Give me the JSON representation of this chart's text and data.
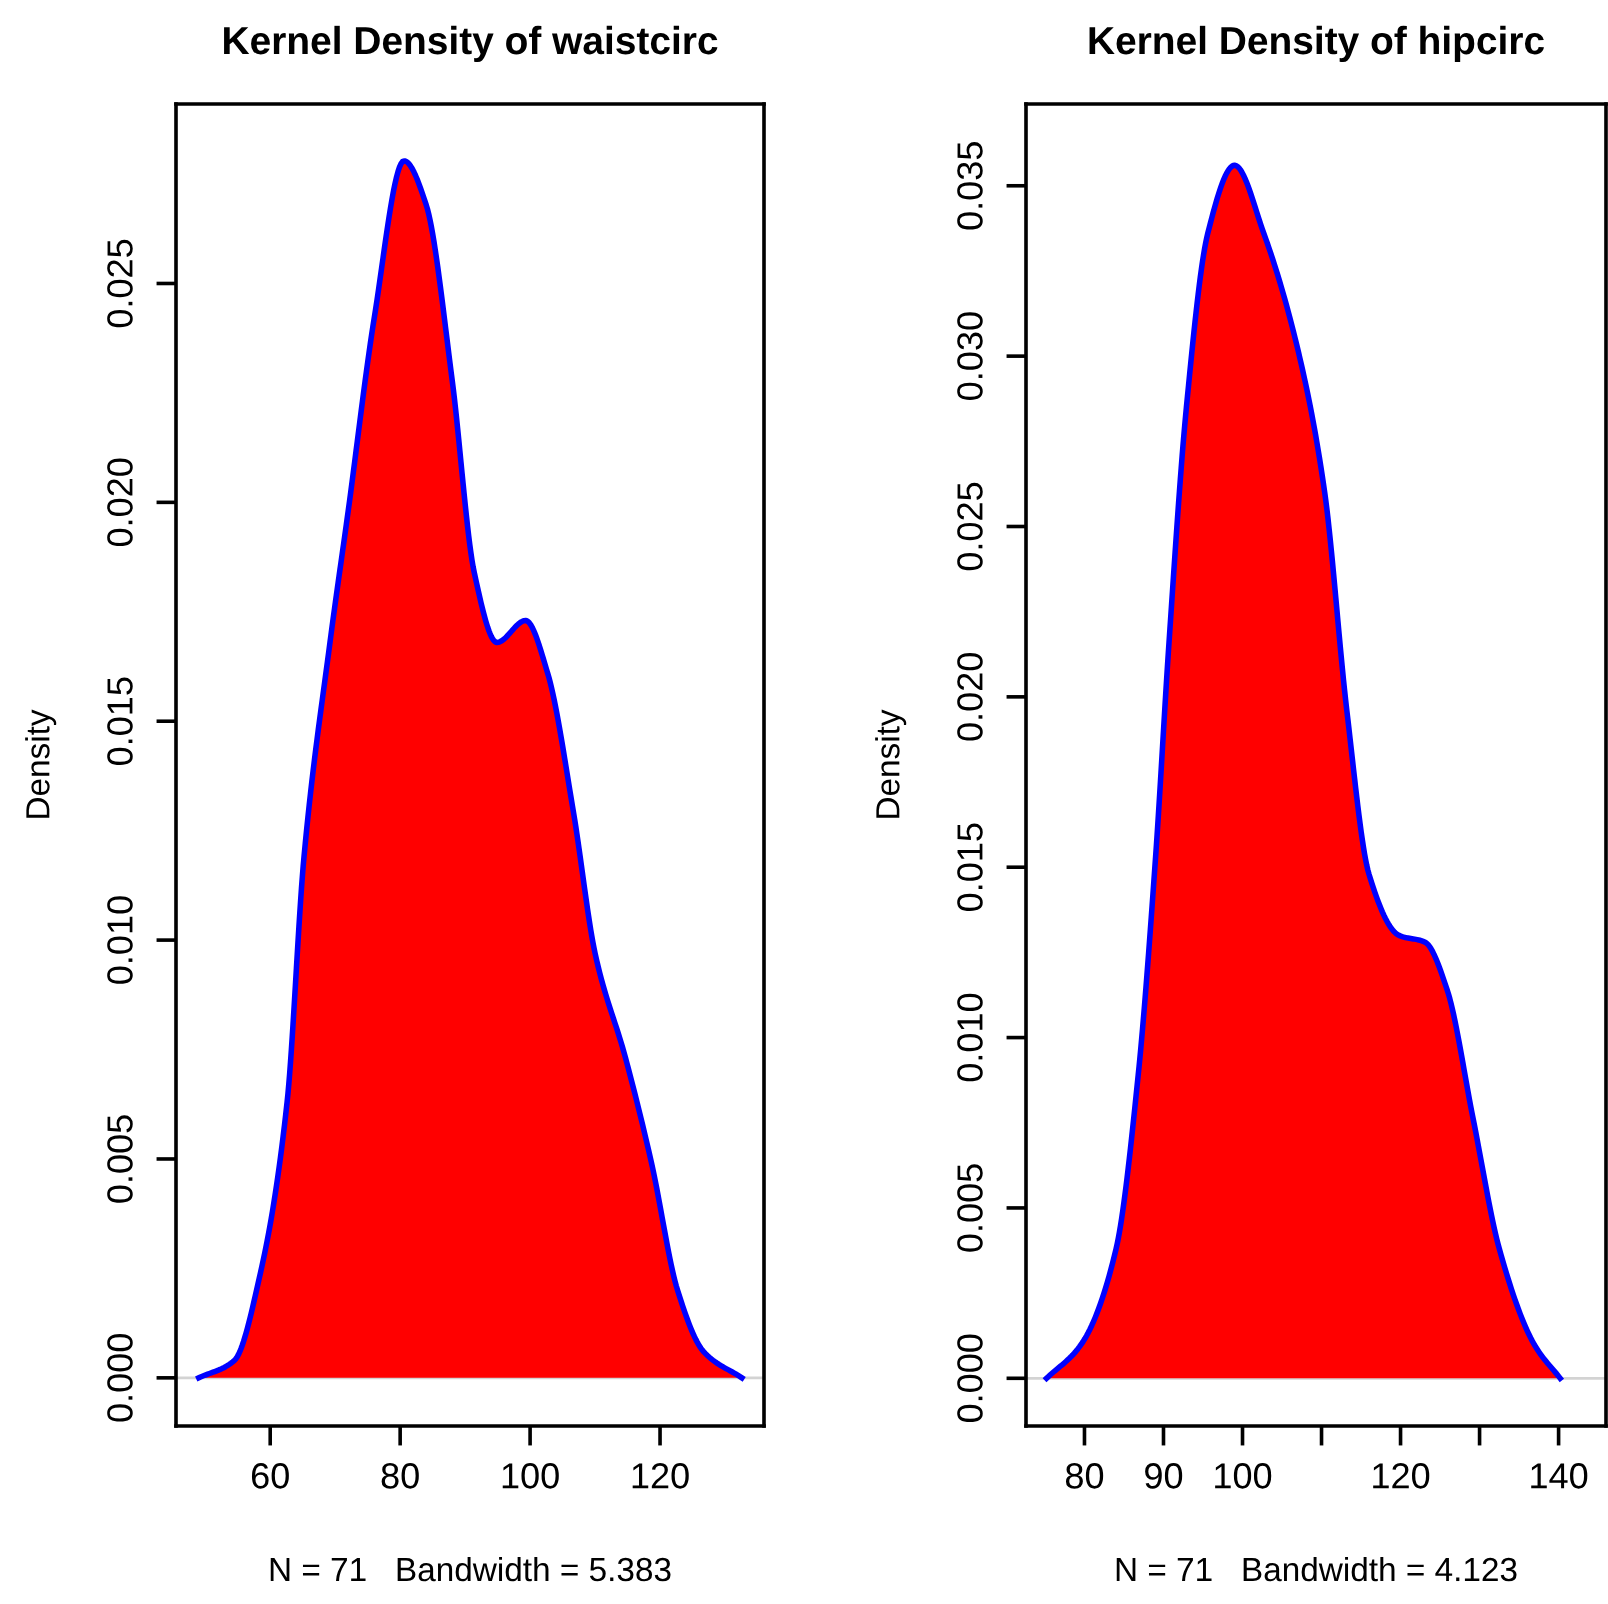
{
  "chart_data": [
    {
      "type": "area",
      "title": "Kernel Density of waistcirc",
      "xlabel": "N = 71   Bandwidth = 5.383",
      "ylabel": "Density",
      "xlim": [
        45.5,
        136
      ],
      "xticks": [
        60,
        80,
        100,
        120
      ],
      "ylim": [
        -0.0011,
        0.0291
      ],
      "yticks": [
        {
          "value": 0,
          "label": "0.000"
        },
        0.005,
        {
          "value": 0.01,
          "label": "0.010"
        },
        0.015,
        {
          "value": 0.02,
          "label": "0.020"
        },
        0.025
      ],
      "ref_lines": [
        {
          "axis": "y",
          "value": 0,
          "color": "#d3d3d3"
        }
      ],
      "grid": false,
      "legend": false,
      "series": [
        {
          "color": "#ff0000",
          "x": [
            49,
            54.5,
            58.5,
            62.6,
            65.2,
            69.2,
            72,
            76,
            80.6,
            84,
            88,
            91.4,
            94.9,
            99.3,
            102.7,
            106.7,
            110,
            114.7,
            118.7,
            122.7,
            126.7,
            132.6
          ],
          "values": [
            0,
            0.0004,
            0.0024,
            0.0063,
            0.0119,
            0.0168,
            0.0198,
            0.0242,
            0.0278,
            0.0268,
            0.0228,
            0.0184,
            0.0168,
            0.0173,
            0.0161,
            0.0129,
            0.0097,
            0.0073,
            0.0049,
            0.002,
            0.0006,
            0
          ]
        }
      ]
    },
    {
      "type": "area",
      "title": "Kernel Density of hipcirc",
      "xlabel": "N = 71   Bandwidth = 4.123",
      "ylabel": "Density",
      "xlim": [
        72.6,
        146
      ],
      "xticks": [
        80,
        90,
        100,
        {
          "value": 110,
          "label": null
        },
        120,
        {
          "value": 130,
          "label": null
        },
        140
      ],
      "ylim": [
        -0.0014,
        0.0374
      ],
      "yticks": [
        {
          "value": 0,
          "label": "0.000"
        },
        0.005,
        {
          "value": 0.01,
          "label": "0.010"
        },
        0.015,
        {
          "value": 0.02,
          "label": "0.020"
        },
        0.025,
        {
          "value": 0.03,
          "label": "0.030"
        },
        0.035
      ],
      "ref_lines": [
        {
          "axis": "y",
          "value": 0,
          "color": "#d3d3d3"
        }
      ],
      "grid": false,
      "legend": false,
      "series": [
        {
          "color": "#ff0000",
          "x": [
            75.2,
            79.6,
            84.0,
            86.8,
            89.0,
            90.7,
            92.9,
            95.6,
            99.0,
            102.7,
            107.1,
            110.4,
            113.2,
            116.0,
            119.8,
            123.1,
            125.9,
            129.2,
            132.5,
            136.9,
            140.2
          ],
          "values": [
            0,
            0.001,
            0.0038,
            0.0089,
            0.0153,
            0.0216,
            0.0285,
            0.0336,
            0.0356,
            0.0336,
            0.0301,
            0.026,
            0.0196,
            0.0148,
            0.013,
            0.0128,
            0.0114,
            0.0076,
            0.0038,
            0.001,
            0
          ]
        }
      ]
    }
  ]
}
